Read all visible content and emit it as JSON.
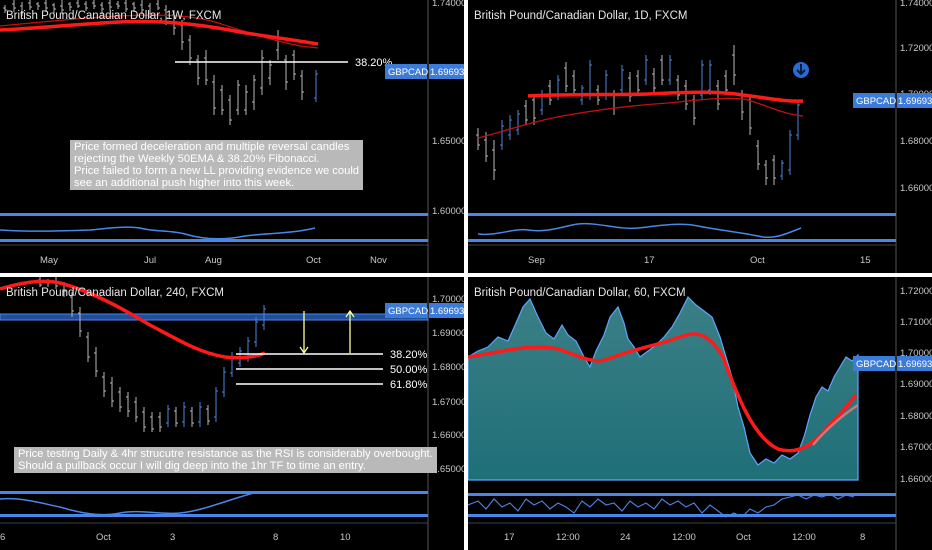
{
  "colors": {
    "background": "#000000",
    "axis_text": "#c8c8c8",
    "candle": "#b8b8b8",
    "candle_up": "#4f86d6",
    "ema": "#ff1a1a",
    "fib": "#ffffff",
    "badge": "#3d7bd9",
    "rsi": "#4a86e8",
    "arrow_yellow": "#ffff99",
    "area_fill": "#2a6f7a",
    "note_bg": "#b9b9b9"
  },
  "panels": [
    {
      "id": "tl",
      "title": "British Pound/Canadian Dollar, 1W, FXCM",
      "price_labels": [
        "1.74000",
        "1.65000",
        "1.60000"
      ],
      "x_labels": [
        "May",
        "Jul",
        "Aug",
        "Oct",
        "Nov"
      ],
      "badge_name": "GBPCAD",
      "badge_price": "1.69693",
      "fib_labels": [
        "38.20%"
      ],
      "note": "Price formed deceleration and multiple reversal candles\nrejecting the Weekly 50EMA & 38.20% Fibonacci.\nPrice failed to form a new LL providing evidence we could\nsee an additional push higher into this week."
    },
    {
      "id": "tr",
      "title": "British Pound/Canadian Dollar, 1D, FXCM",
      "price_labels": [
        "1.74000",
        "1.72000",
        "1.70000",
        "1.68000",
        "1.66000"
      ],
      "x_labels": [
        "Sep",
        "17",
        "Oct",
        "15"
      ],
      "badge_name": "GBPCAD",
      "badge_price": "1.69693",
      "icon": "down-arrow-circle-icon"
    },
    {
      "id": "bl",
      "title": "British Pound/Canadian Dollar, 240, FXCM",
      "price_labels": [
        "1.70000",
        "1.69000",
        "1.68000",
        "1.67000",
        "1.66000",
        "1.65000"
      ],
      "x_labels": [
        "6",
        "Oct",
        "3",
        "8",
        "10"
      ],
      "badge_name": "GBPCAD",
      "badge_price": "1.69693",
      "fib_labels": [
        "38.20%",
        "50.00%",
        "61.80%"
      ],
      "note": "Price testing Daily & 4hr strucutre resistance as the RSI is considerably overbought.\nShould a pullback occur I will dig deep into the 1hr TF to time an entry."
    },
    {
      "id": "br",
      "title": "British Pound/Canadian Dollar, 60, FXCM",
      "price_labels": [
        "1.72000",
        "1.71000",
        "1.70000",
        "1.69000",
        "1.68000",
        "1.67000",
        "1.66000"
      ],
      "x_labels": [
        "17",
        "12:00",
        "24",
        "12:00",
        "Oct",
        "12:00",
        "8"
      ],
      "badge_name": "GBPCAD",
      "badge_price": "1.69693"
    }
  ]
}
